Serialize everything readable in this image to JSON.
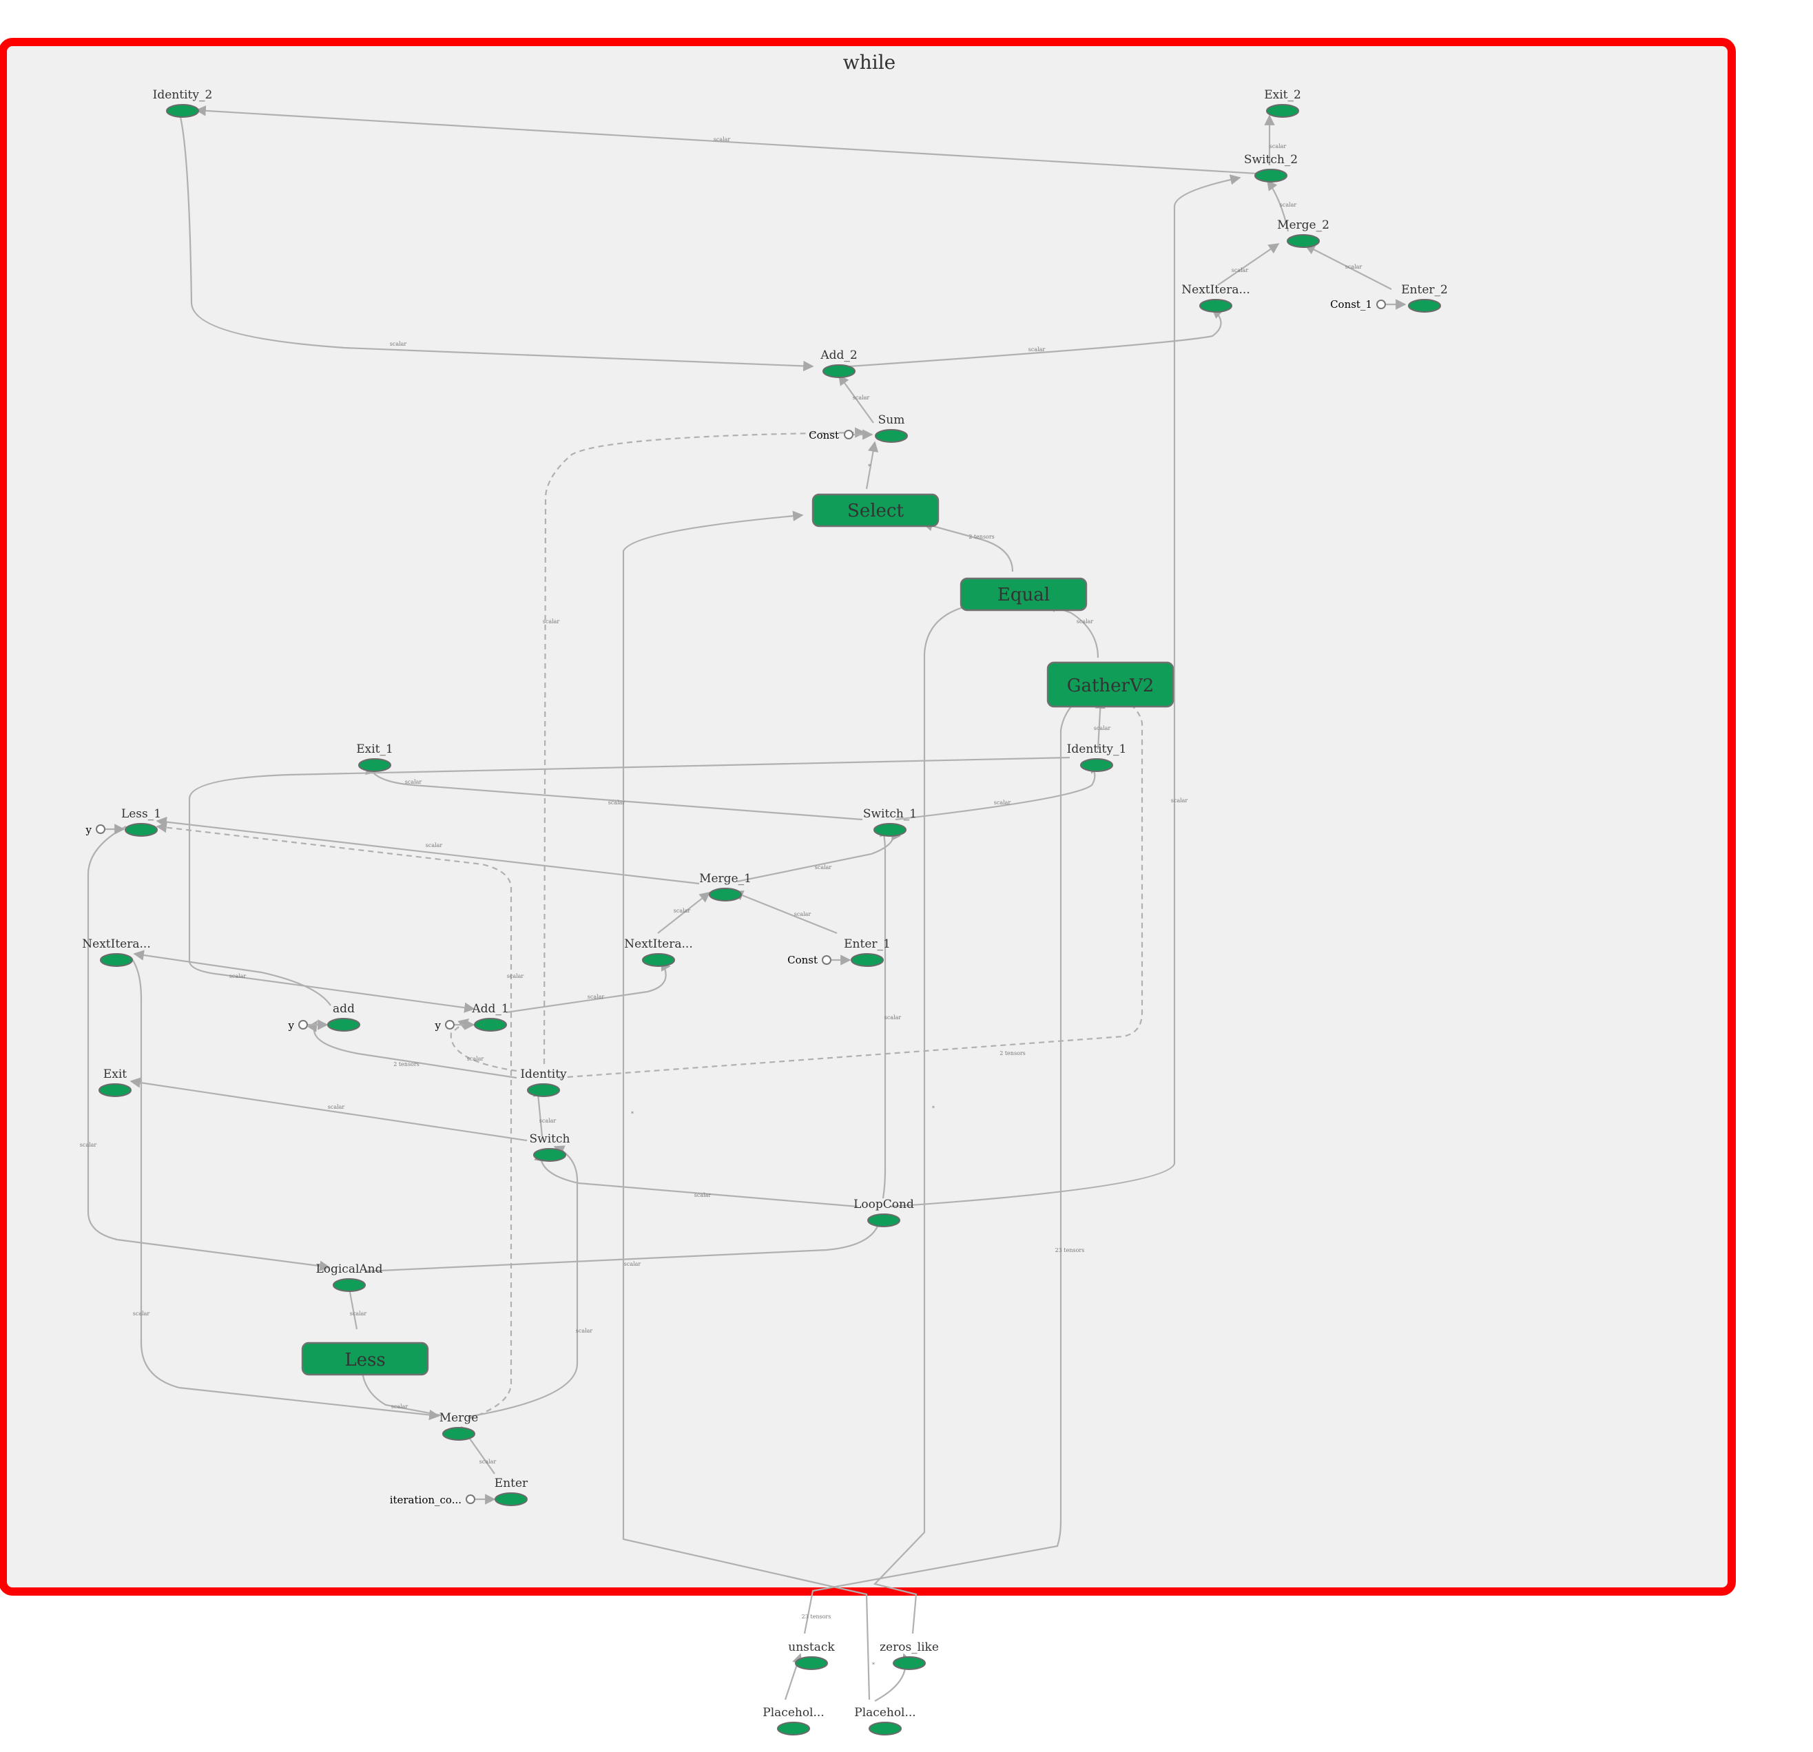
{
  "scope": {
    "title": "while",
    "border_color": "#ff0000",
    "fill_color": "#f0f0f0"
  },
  "colors": {
    "op_fill": "#0f9d58",
    "edge": "#b0b0b0"
  },
  "nodes": {
    "identity_2": "Identity_2",
    "exit_2": "Exit_2",
    "switch_2": "Switch_2",
    "merge_2": "Merge_2",
    "nextiter_2": "NextItera...",
    "enter_2": "Enter_2",
    "add_2": "Add_2",
    "sum": "Sum",
    "select": "Select",
    "equal": "Equal",
    "gatherv2": "GatherV2",
    "exit_1": "Exit_1",
    "identity_1": "Identity_1",
    "less_1": "Less_1",
    "switch_1": "Switch_1",
    "merge_1": "Merge_1",
    "nextiter_0": "NextItera...",
    "nextiter_1": "NextItera...",
    "enter_1": "Enter_1",
    "add": "add",
    "add_1": "Add_1",
    "exit": "Exit",
    "identity": "Identity",
    "switch": "Switch",
    "loopcond": "LoopCond",
    "logicaland": "LogicalAnd",
    "less": "Less",
    "merge": "Merge",
    "enter": "Enter",
    "unstack": "unstack",
    "zeros_like": "zeros_like",
    "placeholder_a": "Placehol...",
    "placeholder_b": "Placehol..."
  },
  "constants": {
    "const_1": "Const_1",
    "const_sum": "Const",
    "y_less1": "y",
    "const_enter1": "Const",
    "y_add": "y",
    "y_add1": "y",
    "iteration_count": "iteration_co..."
  },
  "edge_labels": {
    "scalar": "scalar",
    "tensors_2": "2 tensors",
    "tensors_23": "23 tensors",
    "dim": "*"
  }
}
